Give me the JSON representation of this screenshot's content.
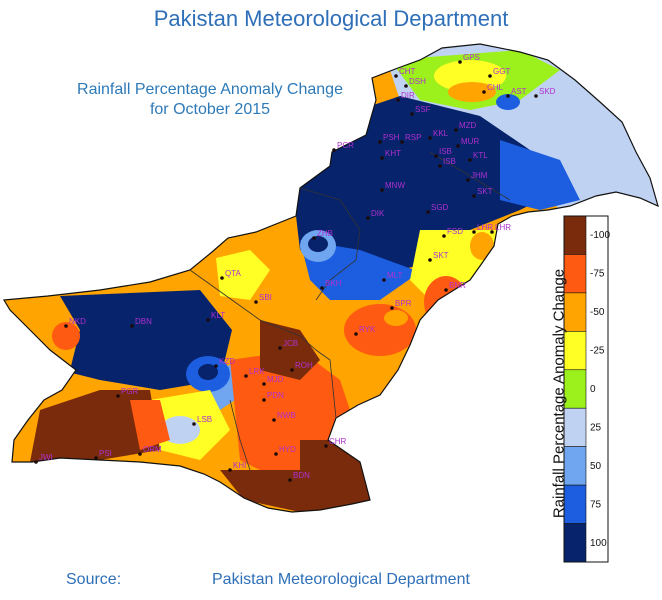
{
  "header": {
    "title": "Pakistan Meteorological Department",
    "subtitle_line1": "Rainfall Percentage Anomaly Change",
    "subtitle_line2": "for October 2015"
  },
  "footer": {
    "source_label": "Source:",
    "source_value": "Pakistan Meteorological Department"
  },
  "legend": {
    "title": "Rainfall Percentage Anomaly Change",
    "classes": [
      {
        "label": "-100",
        "color": "#7a2b0c"
      },
      {
        "label": "-75",
        "color": "#ff5a12"
      },
      {
        "label": "-50",
        "color": "#ffa400"
      },
      {
        "label": "-25",
        "color": "#ffff26"
      },
      {
        "label": "0",
        "color": "#9cf01c"
      },
      {
        "label": "25",
        "color": "#c0d2f2"
      },
      {
        "label": "50",
        "color": "#6fa6ef"
      },
      {
        "label": "75",
        "color": "#1d5ee0"
      },
      {
        "label": "100",
        "color": "#06236b"
      }
    ]
  },
  "stations": [
    {
      "code": "GPS"
    },
    {
      "code": "GGT"
    },
    {
      "code": "CHT"
    },
    {
      "code": "DSH"
    },
    {
      "code": "DIR"
    },
    {
      "code": "CHL"
    },
    {
      "code": "AST"
    },
    {
      "code": "SKD"
    },
    {
      "code": "SSF"
    },
    {
      "code": "PCR"
    },
    {
      "code": "PSH"
    },
    {
      "code": "RSP"
    },
    {
      "code": "KKL"
    },
    {
      "code": "MZD"
    },
    {
      "code": "MUR"
    },
    {
      "code": "KHT"
    },
    {
      "code": "ISB"
    },
    {
      "code": "ISB"
    },
    {
      "code": "KTL"
    },
    {
      "code": "JHM"
    },
    {
      "code": "MNW"
    },
    {
      "code": "SKT"
    },
    {
      "code": "DIK"
    },
    {
      "code": "SGD"
    },
    {
      "code": "ZHB"
    },
    {
      "code": "FSD"
    },
    {
      "code": "LHR"
    },
    {
      "code": "LHR"
    },
    {
      "code": "QTA"
    },
    {
      "code": "SKT"
    },
    {
      "code": "MLT"
    },
    {
      "code": "BKH"
    },
    {
      "code": "SBI"
    },
    {
      "code": "BPR"
    },
    {
      "code": "BNR"
    },
    {
      "code": "NKD"
    },
    {
      "code": "DBN"
    },
    {
      "code": "KLT"
    },
    {
      "code": "RYK"
    },
    {
      "code": "KZD"
    },
    {
      "code": "JCB"
    },
    {
      "code": "LRK"
    },
    {
      "code": "ROH"
    },
    {
      "code": "MJD"
    },
    {
      "code": "PGR"
    },
    {
      "code": "PDN"
    },
    {
      "code": "LSB"
    },
    {
      "code": "NWB"
    },
    {
      "code": "JWI"
    },
    {
      "code": "PSI"
    },
    {
      "code": "ORM"
    },
    {
      "code": "HYD"
    },
    {
      "code": "CHR"
    },
    {
      "code": "KHI"
    },
    {
      "code": "BDN"
    }
  ]
}
